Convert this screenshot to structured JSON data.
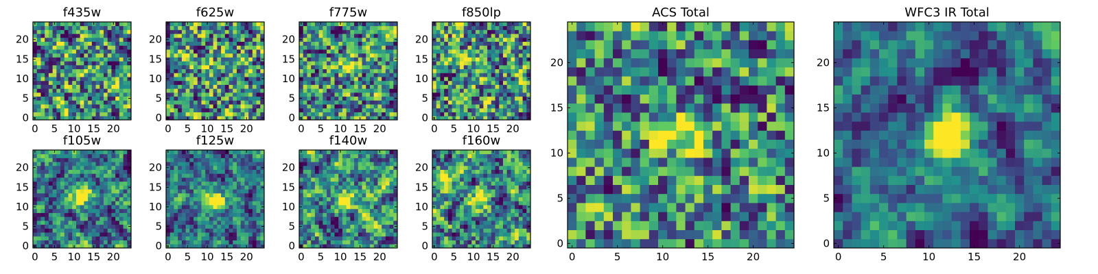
{
  "figure_title": "",
  "colormap": "viridis",
  "colormap_stops": [
    "#440154",
    "#3b528b",
    "#21918c",
    "#5ec962",
    "#fde725"
  ],
  "chart_data": [
    {
      "id": "f435w",
      "type": "heatmap",
      "title": "f435w",
      "grid": [
        25,
        25
      ],
      "xticks": [
        0,
        5,
        10,
        15,
        20
      ],
      "yticks": [
        0,
        5,
        10,
        15,
        20
      ],
      "xtick_labels": [
        "0",
        "5",
        "10",
        "15",
        "20"
      ],
      "ytick_labels": [
        "0",
        "5",
        "10",
        "15",
        "20"
      ],
      "xlim": [
        -0.5,
        24.5
      ],
      "ylim": [
        -0.5,
        24.5
      ],
      "seed": 11,
      "blob": {
        "x": 12,
        "y": 12,
        "amp": 0.05
      },
      "smooth": 0.3
    },
    {
      "id": "f625w",
      "type": "heatmap",
      "title": "f625w",
      "grid": [
        25,
        25
      ],
      "xticks": [
        0,
        5,
        10,
        15,
        20
      ],
      "yticks": [
        0,
        5,
        10,
        15,
        20
      ],
      "xtick_labels": [
        "0",
        "5",
        "10",
        "15",
        "20"
      ],
      "ytick_labels": [
        "0",
        "5",
        "10",
        "15",
        "20"
      ],
      "xlim": [
        -0.5,
        24.5
      ],
      "ylim": [
        -0.5,
        24.5
      ],
      "seed": 23,
      "blob": {
        "x": 12,
        "y": 13,
        "amp": 0.15
      },
      "smooth": 0.3
    },
    {
      "id": "f775w",
      "type": "heatmap",
      "title": "f775w",
      "grid": [
        25,
        25
      ],
      "xticks": [
        0,
        5,
        10,
        15,
        20
      ],
      "yticks": [
        0,
        5,
        10,
        15,
        20
      ],
      "xtick_labels": [
        "0",
        "5",
        "10",
        "15",
        "20"
      ],
      "ytick_labels": [
        "0",
        "5",
        "10",
        "15",
        "20"
      ],
      "xlim": [
        -0.5,
        24.5
      ],
      "ylim": [
        -0.5,
        24.5
      ],
      "seed": 37,
      "blob": {
        "x": 12,
        "y": 13,
        "amp": 0.3
      },
      "smooth": 0.3
    },
    {
      "id": "f850lp",
      "type": "heatmap",
      "title": "f850lp",
      "grid": [
        25,
        25
      ],
      "xticks": [
        0,
        5,
        10,
        15,
        20
      ],
      "yticks": [
        0,
        5,
        10,
        15,
        20
      ],
      "xtick_labels": [
        "0",
        "5",
        "10",
        "15",
        "20"
      ],
      "ytick_labels": [
        "0",
        "5",
        "10",
        "15",
        "20"
      ],
      "xlim": [
        -0.5,
        24.5
      ],
      "ylim": [
        -0.5,
        24.5
      ],
      "seed": 41,
      "blob": {
        "x": 12,
        "y": 13,
        "amp": 0.2
      },
      "smooth": 0.3
    },
    {
      "id": "f105w",
      "type": "heatmap",
      "title": "f105w",
      "grid": [
        25,
        25
      ],
      "xticks": [
        0,
        5,
        10,
        15,
        20
      ],
      "yticks": [
        0,
        5,
        10,
        15,
        20
      ],
      "xtick_labels": [
        "0",
        "5",
        "10",
        "15",
        "20"
      ],
      "ytick_labels": [
        "0",
        "5",
        "10",
        "15",
        "20"
      ],
      "xlim": [
        -0.5,
        24.5
      ],
      "ylim": [
        -0.5,
        24.5
      ],
      "seed": 53,
      "blob": {
        "x": 12,
        "y": 13,
        "amp": 0.5
      },
      "smooth": 0.6
    },
    {
      "id": "f125w",
      "type": "heatmap",
      "title": "f125w",
      "grid": [
        25,
        25
      ],
      "xticks": [
        0,
        5,
        10,
        15,
        20
      ],
      "yticks": [
        0,
        5,
        10,
        15,
        20
      ],
      "xtick_labels": [
        "0",
        "5",
        "10",
        "15",
        "20"
      ],
      "ytick_labels": [
        "0",
        "5",
        "10",
        "15",
        "20"
      ],
      "xlim": [
        -0.5,
        24.5
      ],
      "ylim": [
        -0.5,
        24.5
      ],
      "seed": 67,
      "blob": {
        "x": 12,
        "y": 12,
        "amp": 0.55
      },
      "smooth": 0.6
    },
    {
      "id": "f140w",
      "type": "heatmap",
      "title": "f140w",
      "grid": [
        25,
        25
      ],
      "xticks": [
        0,
        5,
        10,
        15,
        20
      ],
      "yticks": [
        0,
        5,
        10,
        15,
        20
      ],
      "xtick_labels": [
        "0",
        "5",
        "10",
        "15",
        "20"
      ],
      "ytick_labels": [
        "0",
        "5",
        "10",
        "15",
        "20"
      ],
      "xlim": [
        -0.5,
        24.5
      ],
      "ylim": [
        -0.5,
        24.5
      ],
      "seed": 79,
      "blob": {
        "x": 12,
        "y": 12,
        "amp": 0.45
      },
      "smooth": 0.6
    },
    {
      "id": "f160w",
      "type": "heatmap",
      "title": "f160w",
      "grid": [
        25,
        25
      ],
      "xticks": [
        0,
        5,
        10,
        15,
        20
      ],
      "yticks": [
        0,
        5,
        10,
        15,
        20
      ],
      "xtick_labels": [
        "0",
        "5",
        "10",
        "15",
        "20"
      ],
      "ytick_labels": [
        "0",
        "5",
        "10",
        "15",
        "20"
      ],
      "xlim": [
        -0.5,
        24.5
      ],
      "ylim": [
        -0.5,
        24.5
      ],
      "seed": 83,
      "blob": {
        "x": 12,
        "y": 12,
        "amp": 0.4
      },
      "smooth": 0.6
    },
    {
      "id": "acs-total",
      "type": "heatmap",
      "title": "ACS Total",
      "grid": [
        25,
        25
      ],
      "xticks": [
        0,
        5,
        10,
        15,
        20
      ],
      "yticks": [
        0,
        5,
        10,
        15,
        20
      ],
      "xtick_labels": [
        "0",
        "5",
        "10",
        "15",
        "20"
      ],
      "ytick_labels": [
        "0",
        "5",
        "10",
        "15",
        "20"
      ],
      "xlim": [
        -0.5,
        24.5
      ],
      "ylim": [
        -0.5,
        24.5
      ],
      "seed": 97,
      "blob": {
        "x": 12,
        "y": 12,
        "amp": 0.45
      },
      "smooth": 0.35
    },
    {
      "id": "wfc3-ir-total",
      "type": "heatmap",
      "title": "WFC3 IR Total",
      "grid": [
        25,
        25
      ],
      "xticks": [
        0,
        5,
        10,
        15,
        20
      ],
      "yticks": [
        0,
        5,
        10,
        15,
        20
      ],
      "xtick_labels": [
        "0",
        "5",
        "10",
        "15",
        "20"
      ],
      "ytick_labels": [
        "0",
        "5",
        "10",
        "15",
        "20"
      ],
      "xlim": [
        -0.5,
        24.5
      ],
      "ylim": [
        -0.5,
        24.5
      ],
      "seed": 101,
      "blob": {
        "x": 12,
        "y": 12,
        "amp": 0.7
      },
      "smooth": 0.7
    }
  ]
}
